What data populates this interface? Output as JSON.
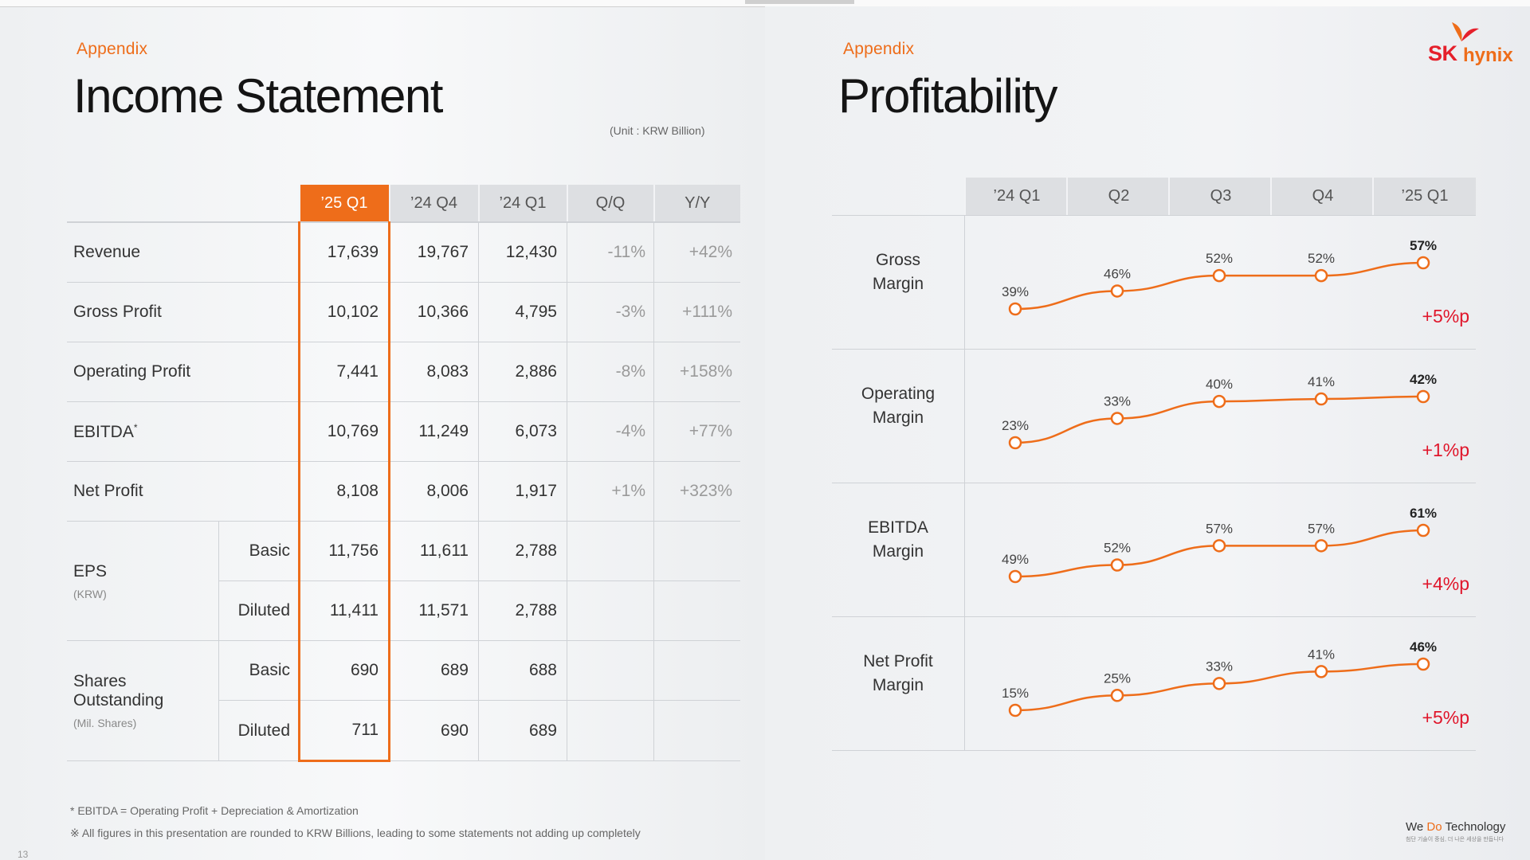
{
  "left": {
    "appendix": "Appendix",
    "title": "Income Statement",
    "unit": "(Unit : KRW Billion)",
    "columns": [
      "’25 Q1",
      "’24 Q4",
      "’24 Q1",
      "Q/Q",
      "Y/Y"
    ],
    "rows": [
      {
        "label": "Revenue",
        "v": [
          "17,639",
          "19,767",
          "12,430",
          "-11%",
          "+42%"
        ]
      },
      {
        "label": "Gross Profit",
        "v": [
          "10,102",
          "10,366",
          "4,795",
          "-3%",
          "+111%"
        ]
      },
      {
        "label": "Operating Profit",
        "v": [
          "7,441",
          "8,083",
          "2,886",
          "-8%",
          "+158%"
        ]
      },
      {
        "label": "EBITDA",
        "sup": "*",
        "v": [
          "10,769",
          "11,249",
          "6,073",
          "-4%",
          "+77%"
        ]
      },
      {
        "label": "Net Profit",
        "v": [
          "8,108",
          "8,006",
          "1,917",
          "+1%",
          "+323%"
        ]
      }
    ],
    "eps": {
      "label": "EPS",
      "unit": "(KRW)",
      "basic": {
        "label": "Basic",
        "v": [
          "11,756",
          "11,611",
          "2,788"
        ]
      },
      "diluted": {
        "label": "Diluted",
        "v": [
          "11,411",
          "11,571",
          "2,788"
        ]
      }
    },
    "shares": {
      "label1": "Shares",
      "label2": "Outstanding",
      "unit": "(Mil. Shares)",
      "basic": {
        "label": "Basic",
        "v": [
          "690",
          "689",
          "688"
        ]
      },
      "diluted": {
        "label": "Diluted",
        "v": [
          "711",
          "690",
          "689"
        ]
      }
    },
    "footnote1": "* EBITDA = Operating Profit + Depreciation & Amortization",
    "footnote2": "※ All figures in this presentation are rounded to KRW Billions, leading to some statements not adding up completely",
    "page_number": "13"
  },
  "right": {
    "appendix": "Appendix",
    "title": "Profitability",
    "logo_sk": "SK",
    "logo_hynix": "hynix",
    "tagline_main_a": "We ",
    "tagline_main_b": "Do",
    "tagline_main_c": " Technology",
    "tagline_sub": "첨단 기술이 중심, 더 나은 세상을 만듭니다"
  },
  "colors": {
    "accent": "#ee6d1a",
    "delta": "#e0162b",
    "header_bg": "#dddfe2"
  },
  "chart_data": {
    "type": "line",
    "categories": [
      "’24 Q1",
      "Q2",
      "Q3",
      "Q4",
      "’25 Q1"
    ],
    "series": [
      {
        "name": "Gross Margin",
        "name_lines": [
          "Gross",
          "Margin"
        ],
        "values": [
          39,
          46,
          52,
          52,
          57
        ],
        "labels": [
          "39%",
          "46%",
          "52%",
          "52%",
          "57%"
        ],
        "delta": "+5%p"
      },
      {
        "name": "Operating Margin",
        "name_lines": [
          "Operating",
          "Margin"
        ],
        "values": [
          23,
          33,
          40,
          41,
          42
        ],
        "labels": [
          "23%",
          "33%",
          "40%",
          "41%",
          "42%"
        ],
        "delta": "+1%p"
      },
      {
        "name": "EBITDA Margin",
        "name_lines": [
          "EBITDA",
          "Margin"
        ],
        "values": [
          49,
          52,
          57,
          57,
          61
        ],
        "labels": [
          "49%",
          "52%",
          "57%",
          "57%",
          "61%"
        ],
        "delta": "+4%p"
      },
      {
        "name": "Net Profit Margin",
        "name_lines": [
          "Net Profit",
          "Margin"
        ],
        "values": [
          15,
          25,
          33,
          41,
          46
        ],
        "labels": [
          "15%",
          "25%",
          "33%",
          "41%",
          "46%"
        ],
        "delta": "+5%p"
      }
    ],
    "line_color": "#ee6d1a"
  }
}
